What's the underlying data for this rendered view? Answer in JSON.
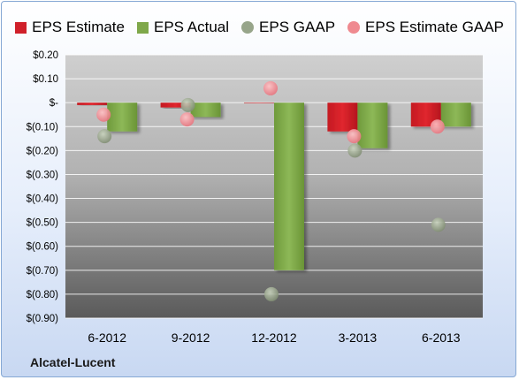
{
  "chart_data": {
    "type": "bar",
    "title": "",
    "xlabel": "",
    "ylabel": "",
    "categories": [
      "6-2012",
      "9-2012",
      "12-2012",
      "3-2013",
      "6-2013"
    ],
    "ylim": [
      -0.9,
      0.2
    ],
    "yticks": [
      0.2,
      0.1,
      0,
      -0.1,
      -0.2,
      -0.3,
      -0.4,
      -0.5,
      -0.6,
      -0.7,
      -0.8,
      -0.9
    ],
    "ytick_labels": [
      "$0.20",
      "$0.10",
      "$-",
      "$(0.10)",
      "$(0.20)",
      "$(0.30)",
      "$(0.40)",
      "$(0.50)",
      "$(0.60)",
      "$(0.70)",
      "$(0.80)",
      "$(0.90)"
    ],
    "grid": true,
    "legend_position": "top",
    "series": [
      {
        "name": "EPS Estimate",
        "kind": "bar",
        "color": "#d0202a",
        "values": [
          -0.01,
          -0.02,
          0,
          -0.12,
          -0.1
        ]
      },
      {
        "name": "EPS Actual",
        "kind": "bar",
        "color": "#7fa84a",
        "values": [
          -0.12,
          -0.06,
          -0.7,
          -0.19,
          -0.1
        ]
      },
      {
        "name": "EPS GAAP",
        "kind": "marker",
        "color": "#97a58a",
        "values": [
          -0.14,
          -0.01,
          -0.8,
          -0.2,
          -0.51
        ]
      },
      {
        "name": "EPS Estimate GAAP",
        "kind": "marker",
        "color": "#ef8a90",
        "values": [
          -0.05,
          -0.07,
          0.06,
          -0.14,
          -0.1
        ]
      }
    ]
  },
  "brand": "Alcatel-Lucent"
}
